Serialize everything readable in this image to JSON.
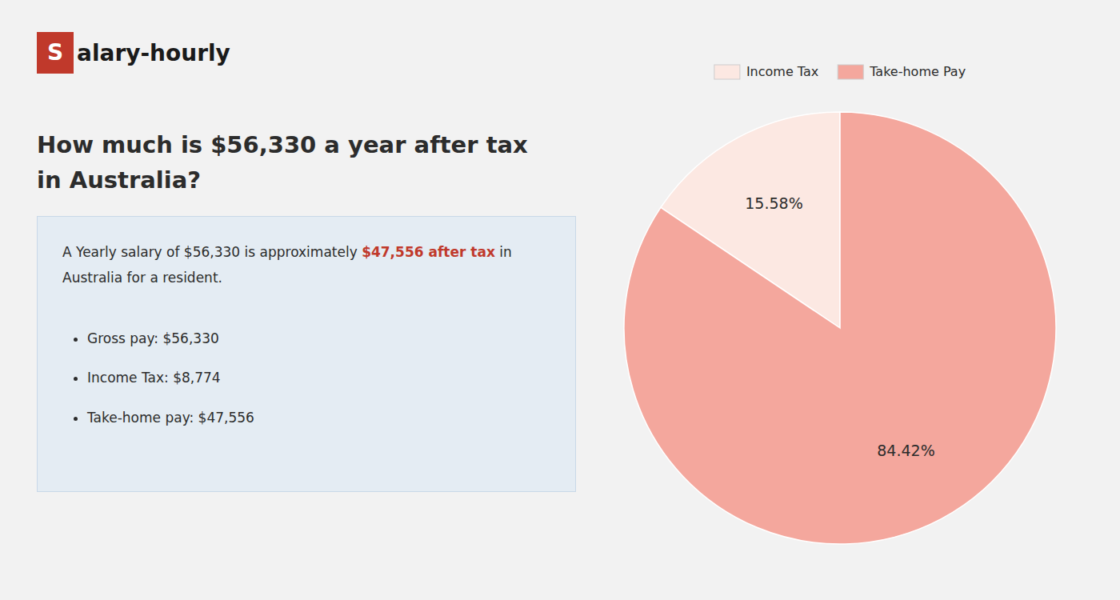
{
  "chart_data": {
    "type": "pie",
    "title": "How much is $56,330 a year after tax in Australia?",
    "categories": [
      "Income Tax",
      "Take-home Pay"
    ],
    "values": [
      15.58,
      84.42
    ],
    "value_labels": [
      "15.58%",
      "84.42%"
    ],
    "colors": [
      "#fce8e2",
      "#f4a79d"
    ],
    "data_labels": true,
    "legend": "top",
    "annotations": [
      {
        "text": "S",
        "color": "#c0392b"
      },
      {
        "text": "alary-hourly"
      },
      {
        "text": "A Yearly salary of $56,330 is approximately "
      },
      {
        "text": "$47,556 after tax",
        "color": "#c0392b"
      },
      {
        "text": " in"
      },
      {
        "text": "Australia for a resident."
      },
      {
        "text": "Gross pay: $56,330"
      },
      {
        "text": "Income Tax: $8,774"
      },
      {
        "text": "Take-home pay: $47,556"
      }
    ]
  }
}
